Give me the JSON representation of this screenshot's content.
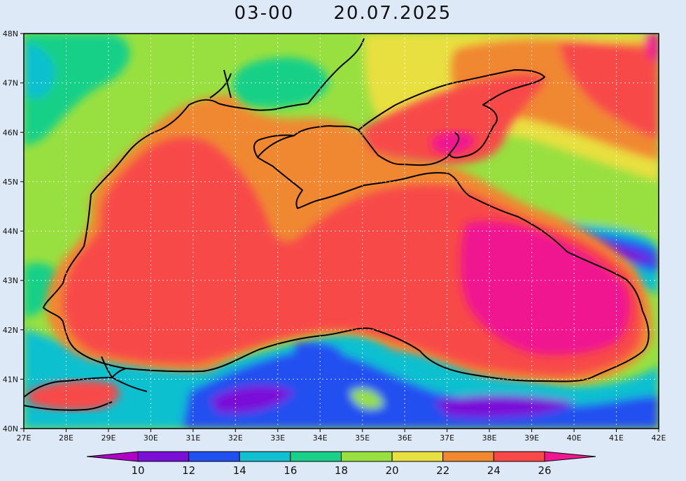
{
  "header": {
    "time": "03-00",
    "date": "20.07.2025"
  },
  "axes": {
    "lat_labels": [
      "48N",
      "47N",
      "46N",
      "45N",
      "44N",
      "43N",
      "42N",
      "41N",
      "40N"
    ],
    "lon_labels": [
      "27E",
      "28E",
      "29E",
      "30E",
      "31E",
      "32E",
      "33E",
      "34E",
      "35E",
      "36E",
      "37E",
      "38E",
      "39E",
      "40E",
      "41E",
      "42E"
    ],
    "lat_range": [
      40,
      48
    ],
    "lon_range": [
      27,
      42
    ],
    "grid": true
  },
  "colorbar": {
    "labels": [
      "10",
      "12",
      "14",
      "16",
      "18",
      "20",
      "22",
      "24",
      "26"
    ],
    "colors": {
      "below_10": "#b000c8",
      "10_12": "#7a10d8",
      "12_14": "#2050f0",
      "14_16": "#10c0d0",
      "16_18": "#18d088",
      "18_20": "#98e040",
      "20_22": "#e8e040",
      "22_24": "#f08830",
      "24_26": "#f84848",
      "above_26": "#f01890"
    }
  }
}
